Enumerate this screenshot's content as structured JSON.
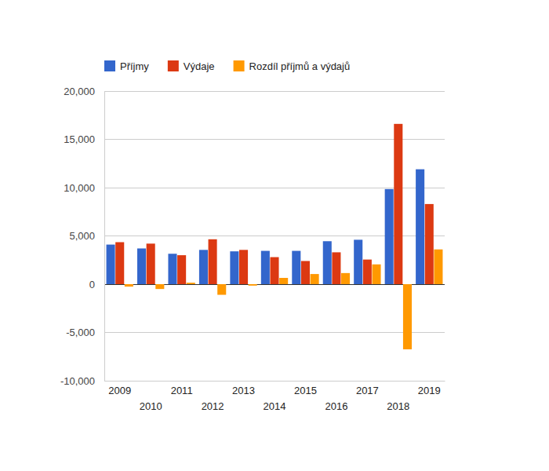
{
  "chart_data": {
    "type": "bar",
    "categories": [
      "2009",
      "2010",
      "2011",
      "2012",
      "2013",
      "2014",
      "2015",
      "2016",
      "2017",
      "2018",
      "2019"
    ],
    "series": [
      {
        "name": "Příjmy",
        "color": "#3366cc",
        "values": [
          4100,
          3700,
          3150,
          3550,
          3400,
          3450,
          3450,
          4450,
          4600,
          9850,
          11900
        ]
      },
      {
        "name": "Výdaje",
        "color": "#dc3912",
        "values": [
          4350,
          4200,
          3000,
          4650,
          3550,
          2800,
          2400,
          3300,
          2550,
          16600,
          8300
        ]
      },
      {
        "name": "Rozdíl příjmů a výdajů",
        "color": "#ff9900",
        "values": [
          -250,
          -500,
          150,
          -1100,
          -150,
          650,
          1050,
          1150,
          2050,
          -6750,
          3600
        ]
      }
    ],
    "ylim": [
      -10000,
      20000
    ],
    "yticks": [
      {
        "value": -10000,
        "label": "-10,000"
      },
      {
        "value": -5000,
        "label": "-5,000"
      },
      0,
      {
        "value": 5000,
        "label": "5,000"
      },
      {
        "value": 10000,
        "label": "10,000"
      },
      {
        "value": 15000,
        "label": "15,000"
      },
      {
        "value": 20000,
        "label": "20,000"
      }
    ],
    "grid": true,
    "legend": "top"
  }
}
